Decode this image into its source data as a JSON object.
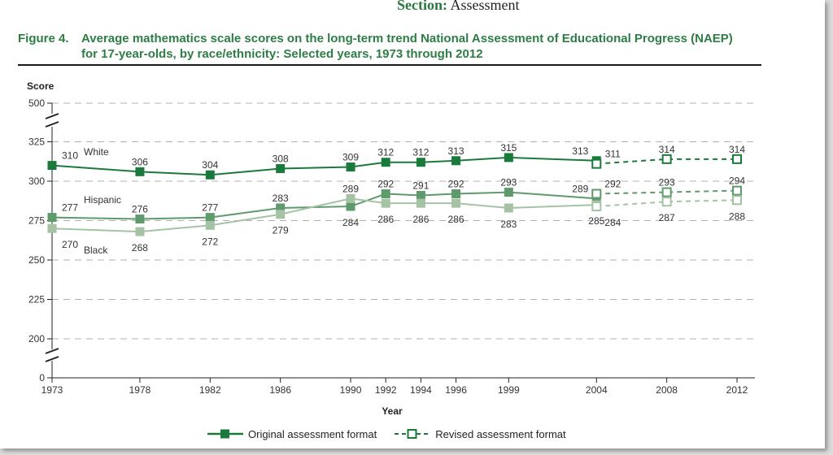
{
  "header": {
    "section_label": "Section:",
    "section_value": "Assessment"
  },
  "figure": {
    "label": "Figure 4.",
    "title_line1": "Average mathematics scale scores on the long-term trend National Assessment of Educational Progress (NAEP)",
    "title_line2": "for 17-year-olds, by race/ethnicity: Selected years, 1973 through 2012"
  },
  "legend": {
    "original": "Original assessment format",
    "revised": "Revised assessment format"
  },
  "colors": {
    "white": "#1a7a3c",
    "hispanic": "#5e9a6c",
    "black": "#a5c2a5",
    "grid": "#b0b0b0"
  },
  "chart_data": {
    "type": "line",
    "xlabel": "Year",
    "ylabel": "Score",
    "y_ticks": [
      0,
      200,
      225,
      250,
      275,
      300,
      325,
      500
    ],
    "x_ticks": [
      1973,
      1978,
      1982,
      1986,
      1990,
      1992,
      1994,
      1996,
      1999,
      2004,
      2008,
      2012
    ],
    "y_axis_breaks": [
      "between 0 and 200",
      "between 325 and 500"
    ],
    "grid": "horizontal dashed",
    "legend_position": "bottom",
    "series": [
      {
        "name": "White",
        "original": {
          "x": [
            1973,
            1978,
            1982,
            1986,
            1990,
            1992,
            1994,
            1996,
            1999,
            2004
          ],
          "y": [
            310,
            306,
            304,
            308,
            309,
            312,
            312,
            313,
            315,
            313
          ]
        },
        "revised": {
          "x": [
            2004,
            2008,
            2012
          ],
          "y": [
            311,
            314,
            314
          ]
        }
      },
      {
        "name": "Hispanic",
        "original": {
          "x": [
            1973,
            1978,
            1982,
            1986,
            1990,
            1992,
            1994,
            1996,
            1999,
            2004
          ],
          "y": [
            277,
            276,
            277,
            283,
            284,
            292,
            291,
            292,
            293,
            289
          ]
        },
        "revised": {
          "x": [
            2004,
            2008,
            2012
          ],
          "y": [
            292,
            293,
            294
          ]
        }
      },
      {
        "name": "Black",
        "original": {
          "x": [
            1973,
            1978,
            1982,
            1986,
            1990,
            1992,
            1994,
            1996,
            1999,
            2004
          ],
          "y": [
            270,
            268,
            272,
            279,
            289,
            286,
            286,
            286,
            283,
            285
          ]
        },
        "revised": {
          "x": [
            2004,
            2008,
            2012
          ],
          "y": [
            284,
            287,
            288
          ]
        }
      }
    ]
  }
}
